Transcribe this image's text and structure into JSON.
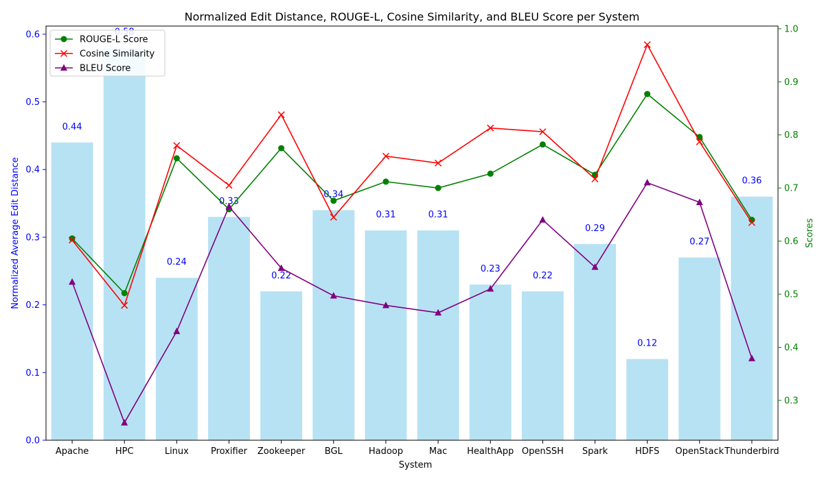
{
  "chart_data": {
    "type": "bar+line",
    "title": "Normalized Edit Distance, ROUGE-L, Cosine Similarity, and BLEU Score per System",
    "xlabel": "System",
    "ylabel_left": "Normalized Average Edit Distance",
    "ylabel_right": "Scores",
    "categories": [
      "Apache",
      "HPC",
      "Linux",
      "Proxifier",
      "Zookeeper",
      "BGL",
      "Hadoop",
      "Mac",
      "HealthApp",
      "OpenSSH",
      "Spark",
      "HDFS",
      "OpenStack",
      "Thunderbird"
    ],
    "bars": {
      "name": "Normalized Average Edit Distance",
      "values": [
        0.44,
        0.58,
        0.24,
        0.33,
        0.22,
        0.34,
        0.31,
        0.31,
        0.23,
        0.22,
        0.29,
        0.12,
        0.27,
        0.36
      ],
      "color": "#87ceeb"
    },
    "ylim_left": [
      0,
      0.612
    ],
    "yticks_left": [
      "0.0",
      "0.1",
      "0.2",
      "0.3",
      "0.4",
      "0.5",
      "0.6"
    ],
    "ylim_right": [
      0.225,
      1.005
    ],
    "yticks_right": [
      "0.3",
      "0.4",
      "0.5",
      "0.6",
      "0.7",
      "0.8",
      "0.9",
      "1.0"
    ],
    "series": [
      {
        "name": "ROUGE-L Score",
        "color": "#008000",
        "marker": "circle",
        "values": [
          0.605,
          0.502,
          0.756,
          0.66,
          0.775,
          0.676,
          0.712,
          0.7,
          0.727,
          0.782,
          0.725,
          0.877,
          0.796,
          0.64
        ]
      },
      {
        "name": "Cosine Similarity",
        "color": "#ff0000",
        "marker": "x",
        "values": [
          0.602,
          0.479,
          0.78,
          0.705,
          0.838,
          0.645,
          0.76,
          0.747,
          0.813,
          0.806,
          0.717,
          0.97,
          0.787,
          0.635
        ]
      },
      {
        "name": "BLEU Score",
        "color": "#800080",
        "marker": "triangle",
        "values": [
          0.523,
          0.258,
          0.43,
          0.665,
          0.549,
          0.497,
          0.479,
          0.465,
          0.51,
          0.64,
          0.551,
          0.71,
          0.673,
          0.379
        ]
      }
    ],
    "legend_position": "top-left",
    "axis_colors": {
      "left": "#0000ff",
      "right": "#008000"
    }
  }
}
